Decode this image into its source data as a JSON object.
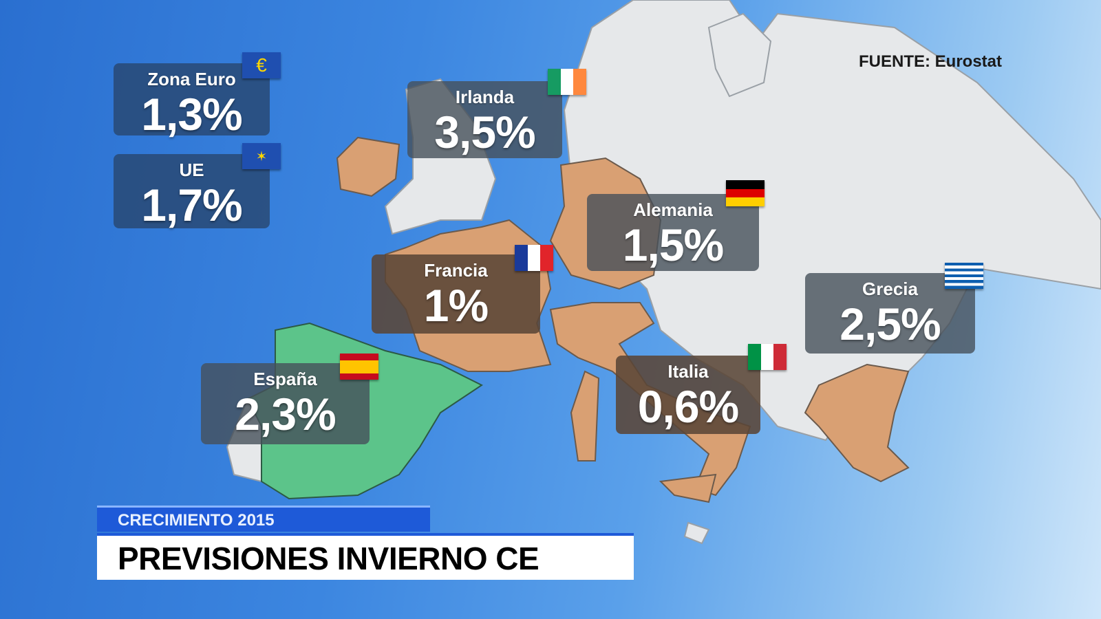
{
  "source": "FUENTE: Eurostat",
  "ticker": {
    "tag": "CRECIMIENTO 2015",
    "title": "PREVISIONES INVIERNO CE"
  },
  "labels": [
    {
      "name": "Zona Euro",
      "value": "1,3%",
      "flag": "euro-symbol"
    },
    {
      "name": "UE",
      "value": "1,7%",
      "flag": "eu"
    },
    {
      "name": "Irlanda",
      "value": "3,5%",
      "flag": "ireland"
    },
    {
      "name": "Alemania",
      "value": "1,5%",
      "flag": "germany"
    },
    {
      "name": "Francia",
      "value": "1%",
      "flag": "france"
    },
    {
      "name": "Grecia",
      "value": "2,5%",
      "flag": "greece"
    },
    {
      "name": "España",
      "value": "2,3%",
      "flag": "spain"
    },
    {
      "name": "Italia",
      "value": "0,6%",
      "flag": "italy"
    }
  ],
  "colors": {
    "highlight": "#5cc48a",
    "featured": "#d9a073",
    "land": "#e4e7ea",
    "accent": "#1e5ad8"
  }
}
